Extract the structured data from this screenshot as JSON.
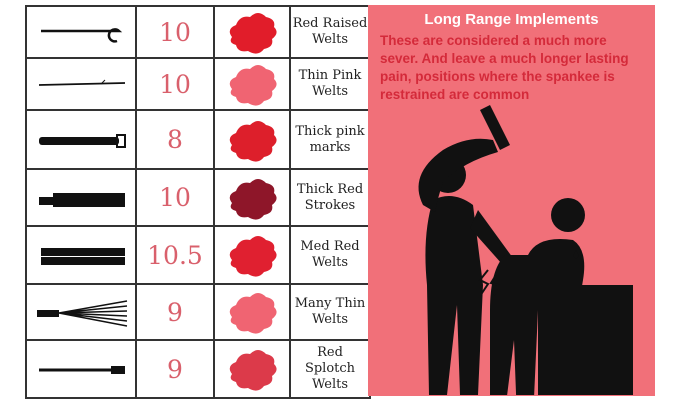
{
  "table": {
    "rows": [
      {
        "implement_icon": "cane-icon",
        "score": "10",
        "mark_color": "#e11d2a",
        "description": "Red Raised Welts"
      },
      {
        "implement_icon": "switch-icon",
        "score": "10",
        "mark_color": "#f06472",
        "description": "Thin Pink Welts"
      },
      {
        "implement_icon": "belt-icon",
        "score": "8",
        "mark_color": "#dd1f2b",
        "description": "Thick pink marks"
      },
      {
        "implement_icon": "strap-icon",
        "score": "10",
        "mark_color": "#8e1629",
        "description": "Thick Red Strokes"
      },
      {
        "implement_icon": "tawse-icon",
        "score": "10.5",
        "mark_color": "#e02030",
        "description": "Med Red Welts"
      },
      {
        "implement_icon": "flogger-icon",
        "score": "9",
        "mark_color": "#f06472",
        "description": "Many Thin Welts"
      },
      {
        "implement_icon": "crop-icon",
        "score": "9",
        "mark_color": "#dc3a4a",
        "description": "Red Splotch Welts"
      }
    ]
  },
  "panel": {
    "title": "Long Range Implements",
    "text": "These are considered a much more sever. And leave a much longer lasting pain, positions where the spankee is restrained are common",
    "background": "#f17079",
    "text_color": "#d42a3a"
  }
}
